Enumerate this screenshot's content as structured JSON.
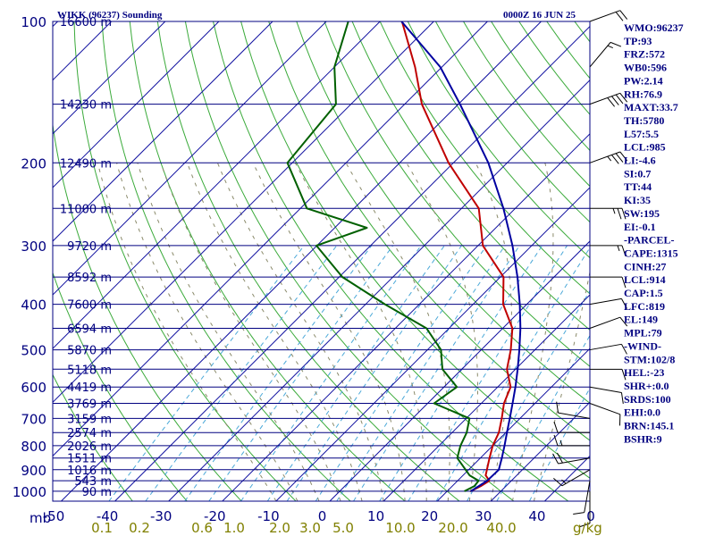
{
  "chart_data": {
    "type": "line",
    "title": "WIKK (96237) Sounding",
    "subtitle": "0000Z 16 JUN 25",
    "pressure_levels": [
      100,
      200,
      300,
      400,
      500,
      600,
      700,
      800,
      900,
      1000
    ],
    "pressure_axis_label": "mb",
    "temperature_ticks": [
      -50,
      -40,
      -30,
      -20,
      -10,
      0,
      10,
      20,
      30,
      40,
      0
    ],
    "mixing_ratio_ticks": [
      "0.1",
      "0.2",
      "0.6",
      "1.0",
      "2.0",
      "3.0",
      "5.0",
      "10.0",
      "20.0",
      "40.0"
    ],
    "mixing_ratio_unit": "g/kg",
    "height_labels": [
      {
        "p": 100,
        "label": "16600 m"
      },
      {
        "p": 150,
        "label": "14230 m"
      },
      {
        "p": 200,
        "label": "12490 m"
      },
      {
        "p": 250,
        "label": "11000 m"
      },
      {
        "p": 300,
        "label": "9720 m"
      },
      {
        "p": 350,
        "label": "8592 m"
      },
      {
        "p": 400,
        "label": "7600 m"
      },
      {
        "p": 450,
        "label": "6594 m"
      },
      {
        "p": 500,
        "label": "5870 m"
      },
      {
        "p": 550,
        "label": "5118 m"
      },
      {
        "p": 600,
        "label": "4419 m"
      },
      {
        "p": 650,
        "label": "3769 m"
      },
      {
        "p": 700,
        "label": "3159 m"
      },
      {
        "p": 750,
        "label": "2574 m"
      },
      {
        "p": 800,
        "label": "2026 m"
      },
      {
        "p": 850,
        "label": "1511 m"
      },
      {
        "p": 900,
        "label": "1016 m"
      },
      {
        "p": 950,
        "label": "543 m"
      },
      {
        "p": 1000,
        "label": "90 m"
      }
    ],
    "series": [
      {
        "name": "",
        "color": "#c00000",
        "points": [
          [
            1000,
            24.4
          ],
          [
            975,
            25.3
          ],
          [
            950,
            25.9
          ],
          [
            925,
            24.2
          ],
          [
            850,
            21.7
          ],
          [
            800,
            20.0
          ],
          [
            750,
            18.7
          ],
          [
            700,
            16.6
          ],
          [
            650,
            14.2
          ],
          [
            600,
            12.4
          ],
          [
            550,
            8.4
          ],
          [
            500,
            5.5
          ],
          [
            450,
            1.8
          ],
          [
            400,
            -4.4
          ],
          [
            350,
            -9.4
          ],
          [
            300,
            -19.1
          ],
          [
            250,
            -26.8
          ],
          [
            200,
            -40.9
          ],
          [
            150,
            -56.8
          ],
          [
            125,
            -65.0
          ],
          [
            100,
            -75.9
          ]
        ]
      },
      {
        "name": "",
        "color": "#006000",
        "points": [
          [
            1000,
            23.2
          ],
          [
            975,
            24.1
          ],
          [
            950,
            23.9
          ],
          [
            925,
            21.2
          ],
          [
            850,
            15.7
          ],
          [
            800,
            14.0
          ],
          [
            750,
            12.7
          ],
          [
            700,
            10.6
          ],
          [
            650,
            1.2
          ],
          [
            600,
            2.4
          ],
          [
            550,
            -3.6
          ],
          [
            500,
            -7.5
          ],
          [
            450,
            -14.2
          ],
          [
            400,
            -26.4
          ],
          [
            350,
            -39.4
          ],
          [
            300,
            -50.1
          ],
          [
            275,
            -44.0
          ],
          [
            250,
            -58.8
          ],
          [
            200,
            -70.9
          ],
          [
            150,
            -72.8
          ],
          [
            125,
            -80.0
          ],
          [
            100,
            -85.9
          ]
        ]
      },
      {
        "name": "",
        "color": "#0000a0",
        "points": [
          [
            1000,
            24.4
          ],
          [
            950,
            25.5
          ],
          [
            900,
            25.6
          ],
          [
            850,
            24.0
          ],
          [
            800,
            22.2
          ],
          [
            750,
            20.2
          ],
          [
            700,
            18.1
          ],
          [
            650,
            15.8
          ],
          [
            600,
            13.3
          ],
          [
            550,
            10.4
          ],
          [
            500,
            7.1
          ],
          [
            450,
            3.3
          ],
          [
            400,
            -1.3
          ],
          [
            350,
            -6.8
          ],
          [
            300,
            -13.6
          ],
          [
            250,
            -22.2
          ],
          [
            200,
            -33.5
          ],
          [
            150,
            -49.7
          ],
          [
            125,
            -60.3
          ],
          [
            100,
            -76.0
          ]
        ]
      }
    ],
    "winds": [
      {
        "p": 1000,
        "dir": 180,
        "spd": 10
      },
      {
        "p": 950,
        "dir": 190,
        "spd": 10
      },
      {
        "p": 900,
        "dir": 240,
        "spd": 15
      },
      {
        "p": 850,
        "dir": 260,
        "spd": 20
      },
      {
        "p": 800,
        "dir": 270,
        "spd": 15
      },
      {
        "p": 750,
        "dir": 270,
        "spd": 10
      },
      {
        "p": 700,
        "dir": 280,
        "spd": 10
      },
      {
        "p": 650,
        "dir": 110,
        "spd": 10
      },
      {
        "p": 600,
        "dir": 100,
        "spd": 10
      },
      {
        "p": 550,
        "dir": 90,
        "spd": 10
      },
      {
        "p": 500,
        "dir": 80,
        "spd": 10
      },
      {
        "p": 450,
        "dir": 70,
        "spd": 10
      },
      {
        "p": 400,
        "dir": 80,
        "spd": 10
      },
      {
        "p": 350,
        "dir": 90,
        "spd": 10
      },
      {
        "p": 300,
        "dir": 90,
        "spd": 15
      },
      {
        "p": 250,
        "dir": 90,
        "spd": 25
      },
      {
        "p": 200,
        "dir": 70,
        "spd": 35
      },
      {
        "p": 150,
        "dir": 70,
        "spd": 40
      },
      {
        "p": 125,
        "dir": 40,
        "spd": 15
      },
      {
        "p": 100,
        "dir": 70,
        "spd": 20
      }
    ],
    "indices": [
      "WMO:96237",
      "TP:93",
      "FRZ:572",
      "WB0:596",
      "PW:2.14",
      "RH:76.9",
      "MAXT:33.7",
      "TH:5780",
      "L57:5.5",
      "LCL:985",
      "LI:-4.6",
      "SI:0.7",
      "TT:44",
      "KI:35",
      "SW:195",
      "EI:-0.1",
      "-PARCEL-",
      "CAPE:1315",
      "CINH:27",
      "LCL:914",
      "CAP:1.5",
      "LFC:819",
      "EL:149",
      "MPL:79",
      "-WIND-",
      "STM:102/8",
      "HEL:-23",
      "SHR+:0.0",
      "SRDS:100",
      "EHI:0.0",
      "BRN:145.1",
      "BSHR:9"
    ]
  }
}
